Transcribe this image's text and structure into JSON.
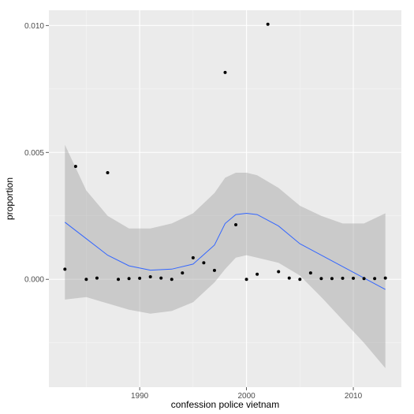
{
  "chart_data": {
    "type": "scatter",
    "title": "",
    "xlabel": "confession police vietnam",
    "ylabel": "proportion",
    "xlim": [
      1981.5,
      2014.5
    ],
    "ylim": [
      -0.00425,
      0.0106
    ],
    "x_ticks": [
      1990,
      2000,
      2010
    ],
    "x_tick_labels": [
      "1990",
      "2000",
      "2010"
    ],
    "y_ticks": [
      0.0,
      0.005,
      0.01
    ],
    "y_tick_labels": [
      "0.000",
      "0.005",
      "0.010"
    ],
    "grid": true,
    "legend": "none",
    "series": [
      {
        "kind": "points",
        "x": [
          1983,
          1984,
          1985,
          1986,
          1987,
          1988,
          1989,
          1990,
          1991,
          1992,
          1993,
          1994,
          1995,
          1996,
          1997,
          1998,
          1999,
          2000,
          2001,
          2002,
          2003,
          2004,
          2005,
          2006,
          2007,
          2008,
          2009,
          2010,
          2011,
          2012,
          2013
        ],
        "y": [
          0.0004,
          0.00445,
          0.0,
          5e-05,
          0.0042,
          0.0,
          3e-05,
          4e-05,
          0.0001,
          5e-05,
          0.0,
          0.00025,
          0.00085,
          0.00065,
          0.00035,
          0.00815,
          0.00215,
          0.0,
          0.0002,
          0.01005,
          0.0003,
          5e-05,
          0.0,
          0.00025,
          3e-05,
          3e-05,
          4e-05,
          4e-05,
          3e-05,
          3e-05,
          5e-05
        ]
      },
      {
        "kind": "smooth",
        "x": [
          1983,
          1985,
          1987,
          1989,
          1991,
          1993,
          1995,
          1997,
          1998,
          1999,
          2000,
          2001,
          2003,
          2005,
          2007,
          2009,
          2011,
          2013
        ],
        "y": [
          0.00225,
          0.0016,
          0.00095,
          0.00053,
          0.00036,
          0.0004,
          0.0006,
          0.00135,
          0.0022,
          0.00255,
          0.0026,
          0.00255,
          0.0021,
          0.0014,
          0.00095,
          0.0005,
          5e-05,
          -0.0004
        ],
        "lower": [
          -0.0008,
          -0.0007,
          -0.00095,
          -0.0012,
          -0.00135,
          -0.00125,
          -0.0009,
          -0.00012,
          0.0004,
          0.00085,
          0.00095,
          0.00085,
          0.00065,
          0.00015,
          -0.0007,
          -0.0016,
          -0.0025,
          -0.0035
        ],
        "upper": [
          0.0053,
          0.0035,
          0.0025,
          0.002,
          0.002,
          0.0022,
          0.0026,
          0.0034,
          0.004,
          0.0042,
          0.0042,
          0.0041,
          0.0036,
          0.0029,
          0.0025,
          0.0022,
          0.0022,
          0.0026
        ]
      }
    ],
    "colors": {
      "panel": "#ebebeb",
      "grid_major": "#ffffff",
      "grid_minor": "#f5f5f5",
      "points": "#000000",
      "line": "#3366ff",
      "ribbon": "#999999"
    }
  }
}
